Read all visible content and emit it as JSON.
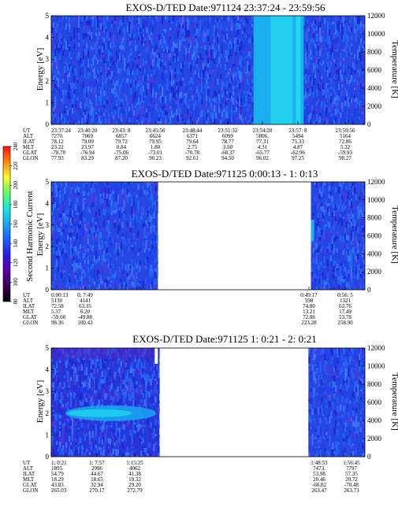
{
  "colorbar": {
    "label": "Second Harmonic Current",
    "ticks": [
      80,
      100,
      120,
      140,
      160,
      180,
      200,
      220,
      240
    ],
    "range": [
      80,
      240
    ],
    "colors": [
      "#000000",
      "#3a0050",
      "#5a00a8",
      "#2a1ae0",
      "#1a5ef8",
      "#1aa8f0",
      "#18e6e0",
      "#60ff60",
      "#ffff30",
      "#ff8a10",
      "#ff1010"
    ]
  },
  "chart_data": [
    {
      "type": "heatmap",
      "title": "EXOS-D/TED    Date:971124   23:37:24 - 23:59:56",
      "ylabel": "Energy [eV]",
      "ylabel_right": "Temperature [K]",
      "ylim": [
        0,
        5
      ],
      "yticks": [
        "0",
        "1",
        "2",
        "3",
        "4",
        "5"
      ],
      "ylim_right": [
        0,
        12000
      ],
      "yticks_right": [
        "0",
        "2000",
        "4000",
        "6000",
        "8000",
        "10000",
        "12000"
      ],
      "data_segments": [
        [
          0,
          1
        ]
      ],
      "ephemeris": {
        "rows": [
          "UT",
          "ALT",
          "ILAT",
          "MLT",
          "GLAT",
          "GLON"
        ],
        "columns": [
          [
            "23:37:24",
            "7270.",
            "78.12",
            "23.22",
            "-78.70",
            "77.93"
          ],
          [
            "23:40:20",
            "7069",
            "79.09",
            "23.97",
            "-76.94",
            "83.29"
          ],
          [
            "23:43: 8",
            "6857",
            "79.72",
            "0.84",
            "-75.06",
            "87.20"
          ],
          [
            "23:45:56",
            "6624",
            "79.95",
            "1.80",
            "-73.01",
            "90.23"
          ],
          [
            "23:48:44",
            "6371",
            "79.64",
            "2.75",
            "-70.78",
            "92.61"
          ],
          [
            "23:51:32",
            "6099",
            "78.77",
            "3.60",
            "-68.37",
            "94.50"
          ],
          [
            "23:54:20",
            "5806.",
            "77.31",
            "4.31",
            "-65.77",
            "96.02"
          ],
          [
            "23:57: 8",
            "5494",
            "75.33",
            "4.87",
            "-62.96",
            "97.25"
          ],
          [
            "23:59:56",
            "5164",
            "72.86",
            "5.32",
            "-59.93",
            "98.27"
          ]
        ]
      }
    },
    {
      "type": "heatmap",
      "title": "EXOS-D/TED    Date:971125   0:00:13 -  1: 0:13",
      "ylabel": "Energy [eV]",
      "ylabel_right": "Temperature [K]",
      "ylim": [
        0,
        5
      ],
      "yticks": [
        "0",
        "1",
        "2",
        "3",
        "4",
        "5"
      ],
      "ylim_right": [
        0,
        12000
      ],
      "yticks_right": [
        "0",
        "2000",
        "4000",
        "6000",
        "8000",
        "10000",
        "12000"
      ],
      "data_segments": [
        [
          0,
          0.34
        ],
        [
          0.828,
          1
        ]
      ],
      "ephemeris": {
        "rows": [
          "UT",
          "ALT",
          "ILAT",
          "MLT",
          "GLAT",
          "GLON"
        ],
        "columns": [
          [
            "0:00:13",
            "5130",
            "72.58",
            "5.37",
            "-59.60",
            "98.36"
          ],
          [
            "0: 7:49",
            "4141",
            "63.35",
            "6.20",
            "-49.88",
            "100.43"
          ],
          [
            "0:49:17",
            "598",
            "74.80",
            "13.21",
            "72.86",
            "223.28"
          ],
          [
            "0:56: 5",
            "1321",
            "63.76",
            "17.49",
            "53.78",
            "258.90"
          ]
        ]
      }
    },
    {
      "type": "heatmap",
      "title": "EXOS-D/TED    Date:971125   1: 0:21 -  2: 0:21",
      "ylabel": "Energy [eV]",
      "ylabel_right": "Temperature [K]",
      "ylim": [
        0,
        5
      ],
      "yticks": [
        "0",
        "1",
        "2",
        "3",
        "4",
        "5"
      ],
      "ylim_right": [
        0,
        12000
      ],
      "yticks_right": [
        "0",
        "2000",
        "4000",
        "6000",
        "8000",
        "10000",
        "12000"
      ],
      "data_segments": [
        [
          0,
          0.345
        ],
        [
          0.82,
          1
        ]
      ],
      "ephemeris": {
        "rows": [
          "UT",
          "ALT",
          "ILAT",
          "MLT",
          "GLAT",
          "GLON"
        ],
        "columns": [
          [
            "1: 0:21",
            "1895.",
            "54.79",
            "18.29",
            "43.83",
            "265.03"
          ],
          [
            "1: 7:57",
            "2996",
            "44.67",
            "18.65",
            "32.94",
            "270.17"
          ],
          [
            "1:15:25",
            "4062",
            "41.38",
            "19.32",
            "29.20",
            "272.79"
          ],
          [
            "1:48:53",
            "7473.",
            "53.98",
            "20.46",
            "-66.82",
            "263.47"
          ],
          [
            "1:56:45",
            "7797",
            "57.35",
            "20.72",
            "-70.48",
            "263.73"
          ]
        ]
      }
    }
  ]
}
